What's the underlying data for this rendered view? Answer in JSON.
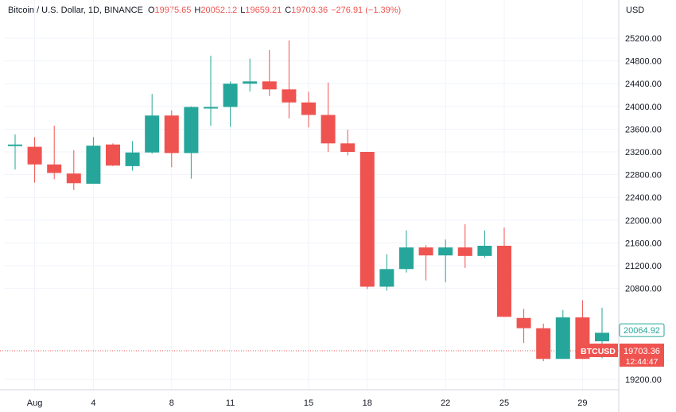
{
  "header": {
    "title": "Bitcoin / U.S. Dollar, 1D, BINANCE",
    "open_label": "O",
    "open": "19975.65",
    "high_label": "H",
    "high": "20052.12",
    "low_label": "L",
    "low": "19659.21",
    "close_label": "C",
    "close": "19703.36",
    "change": "−276.91 (−1.39%)"
  },
  "currency": "USD",
  "colors": {
    "up": "#26a69a",
    "down": "#ef5350",
    "grid": "#f0f3fa",
    "axis_text": "#131722"
  },
  "chart_data": {
    "type": "candlestick",
    "symbol": "BTCUSD",
    "ylim": [
      19000,
      25600
    ],
    "y_ticks": [
      19200,
      20800,
      21200,
      21600,
      22000,
      22400,
      22800,
      23200,
      23600,
      24000,
      24400,
      24800,
      25200
    ],
    "x_tick_labels": [
      {
        "day": 1,
        "label": "Aug"
      },
      {
        "day": 4,
        "label": "4"
      },
      {
        "day": 8,
        "label": "8"
      },
      {
        "day": 11,
        "label": "11"
      },
      {
        "day": 15,
        "label": "15"
      },
      {
        "day": 18,
        "label": "18"
      },
      {
        "day": 22,
        "label": "22"
      },
      {
        "day": 25,
        "label": "25"
      },
      {
        "day": 29,
        "label": "29"
      }
    ],
    "candles": [
      {
        "day": 0,
        "o": 23330,
        "h": 23510,
        "l": 22890,
        "c": 23330
      },
      {
        "day": 1,
        "o": 23290,
        "h": 23460,
        "l": 22660,
        "c": 22980
      },
      {
        "day": 2,
        "o": 22980,
        "h": 23660,
        "l": 22720,
        "c": 22830
      },
      {
        "day": 3,
        "o": 22820,
        "h": 23230,
        "l": 22530,
        "c": 22650
      },
      {
        "day": 4,
        "o": 22640,
        "h": 23460,
        "l": 22640,
        "c": 23310
      },
      {
        "day": 5,
        "o": 23330,
        "h": 23350,
        "l": 22950,
        "c": 22960
      },
      {
        "day": 6,
        "o": 22950,
        "h": 23390,
        "l": 22870,
        "c": 23190
      },
      {
        "day": 7,
        "o": 23190,
        "h": 24220,
        "l": 23170,
        "c": 23840
      },
      {
        "day": 8,
        "o": 23840,
        "h": 23930,
        "l": 22930,
        "c": 23180
      },
      {
        "day": 9,
        "o": 23180,
        "h": 24000,
        "l": 22730,
        "c": 23990
      },
      {
        "day": 10,
        "o": 23990,
        "h": 24890,
        "l": 23660,
        "c": 23990
      },
      {
        "day": 11,
        "o": 23990,
        "h": 24440,
        "l": 23640,
        "c": 24400
      },
      {
        "day": 12,
        "o": 24400,
        "h": 24840,
        "l": 24260,
        "c": 24440
      },
      {
        "day": 13,
        "o": 24440,
        "h": 24990,
        "l": 24180,
        "c": 24300
      },
      {
        "day": 14,
        "o": 24300,
        "h": 25160,
        "l": 23790,
        "c": 24070
      },
      {
        "day": 15,
        "o": 24070,
        "h": 24260,
        "l": 23630,
        "c": 23850
      },
      {
        "day": 16,
        "o": 23850,
        "h": 24420,
        "l": 23200,
        "c": 23350
      },
      {
        "day": 17,
        "o": 23350,
        "h": 23590,
        "l": 23140,
        "c": 23200
      },
      {
        "day": 18,
        "o": 23200,
        "h": 23200,
        "l": 20790,
        "c": 20830
      },
      {
        "day": 19,
        "o": 20830,
        "h": 21400,
        "l": 20760,
        "c": 21140
      },
      {
        "day": 20,
        "o": 21140,
        "h": 21820,
        "l": 21080,
        "c": 21520
      },
      {
        "day": 21,
        "o": 21520,
        "h": 21560,
        "l": 20940,
        "c": 21380
      },
      {
        "day": 22,
        "o": 21380,
        "h": 21660,
        "l": 20910,
        "c": 21520
      },
      {
        "day": 23,
        "o": 21520,
        "h": 21930,
        "l": 21160,
        "c": 21370
      },
      {
        "day": 24,
        "o": 21370,
        "h": 21820,
        "l": 21340,
        "c": 21550
      },
      {
        "day": 25,
        "o": 21550,
        "h": 21870,
        "l": 20300,
        "c": 20300
      },
      {
        "day": 26,
        "o": 20280,
        "h": 20440,
        "l": 19840,
        "c": 20100
      },
      {
        "day": 27,
        "o": 20100,
        "h": 20180,
        "l": 19520,
        "c": 19560
      },
      {
        "day": 28,
        "o": 19560,
        "h": 20420,
        "l": 19560,
        "c": 20290
      },
      {
        "day": 29,
        "o": 20290,
        "h": 20590,
        "l": 19560,
        "c": 19560
      },
      {
        "day": 30,
        "o": 19870,
        "h": 20460,
        "l": 19570,
        "c": 20020
      }
    ],
    "price_labels": [
      {
        "name": "prev-close-label",
        "value": 20064.92,
        "text": "20064.92"
      },
      {
        "name": "last-price-label",
        "value": 19703.36,
        "text": "19703.36",
        "time": "12:44:47",
        "symbol": "BTCUSD"
      }
    ]
  }
}
